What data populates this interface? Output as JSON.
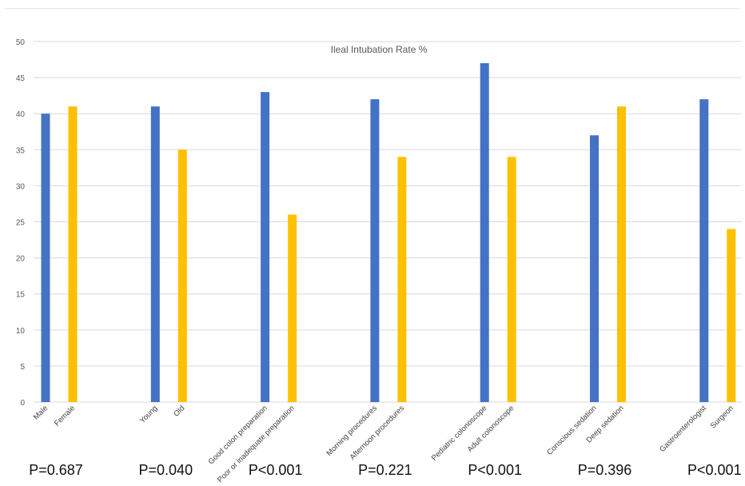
{
  "chart_data": {
    "type": "bar",
    "title": "Ileal Intubation Rate %",
    "xlabel": "",
    "ylabel": "",
    "ylim": [
      0,
      50
    ],
    "yticks": [
      0,
      5,
      10,
      15,
      20,
      25,
      30,
      35,
      40,
      45,
      50
    ],
    "grid": true,
    "legend": "none",
    "colors": {
      "first": "#4472C4",
      "second": "#FFC000",
      "grid": "#d9d9d9"
    },
    "groups": [
      {
        "bars": [
          {
            "label": "Male",
            "value": 40
          },
          {
            "label": "Female",
            "value": 41
          }
        ],
        "p_value": "P=0.687"
      },
      {
        "bars": [
          {
            "label": "Young",
            "value": 41
          },
          {
            "label": "Old",
            "value": 35
          }
        ],
        "p_value": "P=0.040"
      },
      {
        "bars": [
          {
            "label": "Good colon preparation",
            "value": 43
          },
          {
            "label": "Poor or inadequate preparation",
            "value": 26
          }
        ],
        "p_value": "P<0.001"
      },
      {
        "bars": [
          {
            "label": "Morning procedures",
            "value": 42
          },
          {
            "label": "Afternoon procedures",
            "value": 34
          }
        ],
        "p_value": "P=0.221"
      },
      {
        "bars": [
          {
            "label": "Pediatric colonoscope",
            "value": 47
          },
          {
            "label": "Adult colonoscope",
            "value": 34
          }
        ],
        "p_value": "P<0.001"
      },
      {
        "bars": [
          {
            "label": "Conscious sedation",
            "value": 37
          },
          {
            "label": "Deep sedation",
            "value": 41
          }
        ],
        "p_value": "P=0.396"
      },
      {
        "bars": [
          {
            "label": "Gastroenterologist",
            "value": 42
          },
          {
            "label": "Surgeon",
            "value": 24
          }
        ],
        "p_value": "P<0.001"
      }
    ]
  }
}
